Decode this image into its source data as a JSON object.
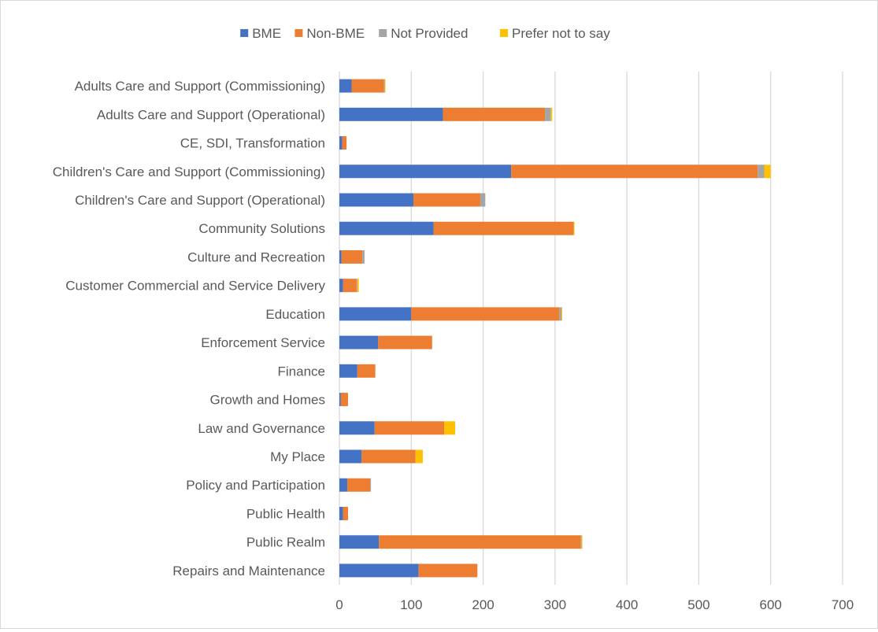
{
  "chart_data": {
    "type": "bar",
    "orientation": "horizontal",
    "stacked": true,
    "title": "",
    "xlabel": "",
    "ylabel": "",
    "xlim": [
      0,
      700
    ],
    "x_ticks": [
      "0",
      "100",
      "200",
      "300",
      "400",
      "500",
      "600",
      "700"
    ],
    "grid": "vertical",
    "legend_position": "top",
    "categories": [
      "Adults Care and Support (Commissioning)",
      "Adults Care and Support (Operational)",
      "CE, SDI, Transformation",
      "Children's Care and Support (Commissioning)",
      "Children's Care and Support (Operational)",
      "Community Solutions",
      "Culture and Recreation",
      "Customer Commercial and Service Delivery",
      "Education",
      "Enforcement Service",
      "Finance",
      "Growth and Homes",
      "Law and Governance",
      "My Place",
      "Policy and Participation",
      "Public Health",
      "Public Realm",
      "Repairs and Maintenance"
    ],
    "series": [
      {
        "name": "BME",
        "color": "#4472c4",
        "values": [
          17,
          144,
          4,
          239,
          103,
          131,
          3,
          5,
          100,
          54,
          25,
          2,
          49,
          31,
          11,
          5,
          55,
          110
        ]
      },
      {
        "name": "Non-BME",
        "color": "#ed7d31",
        "values": [
          45,
          142,
          6,
          343,
          93,
          195,
          29,
          19,
          206,
          75,
          25,
          10,
          97,
          75,
          32,
          7,
          281,
          82
        ]
      },
      {
        "name": "Not Provided",
        "color": "#a5a5a5",
        "values": [
          1,
          8,
          0,
          9,
          7,
          0,
          3,
          1,
          3,
          0,
          0,
          0,
          0,
          0,
          1,
          0,
          1,
          0
        ]
      },
      {
        "name": "Prefer not to say",
        "color": "#ffc000",
        "values": [
          1,
          2,
          0,
          9,
          0,
          1,
          0,
          2,
          1,
          0,
          0,
          0,
          15,
          10,
          0,
          0,
          1,
          0
        ]
      }
    ]
  }
}
